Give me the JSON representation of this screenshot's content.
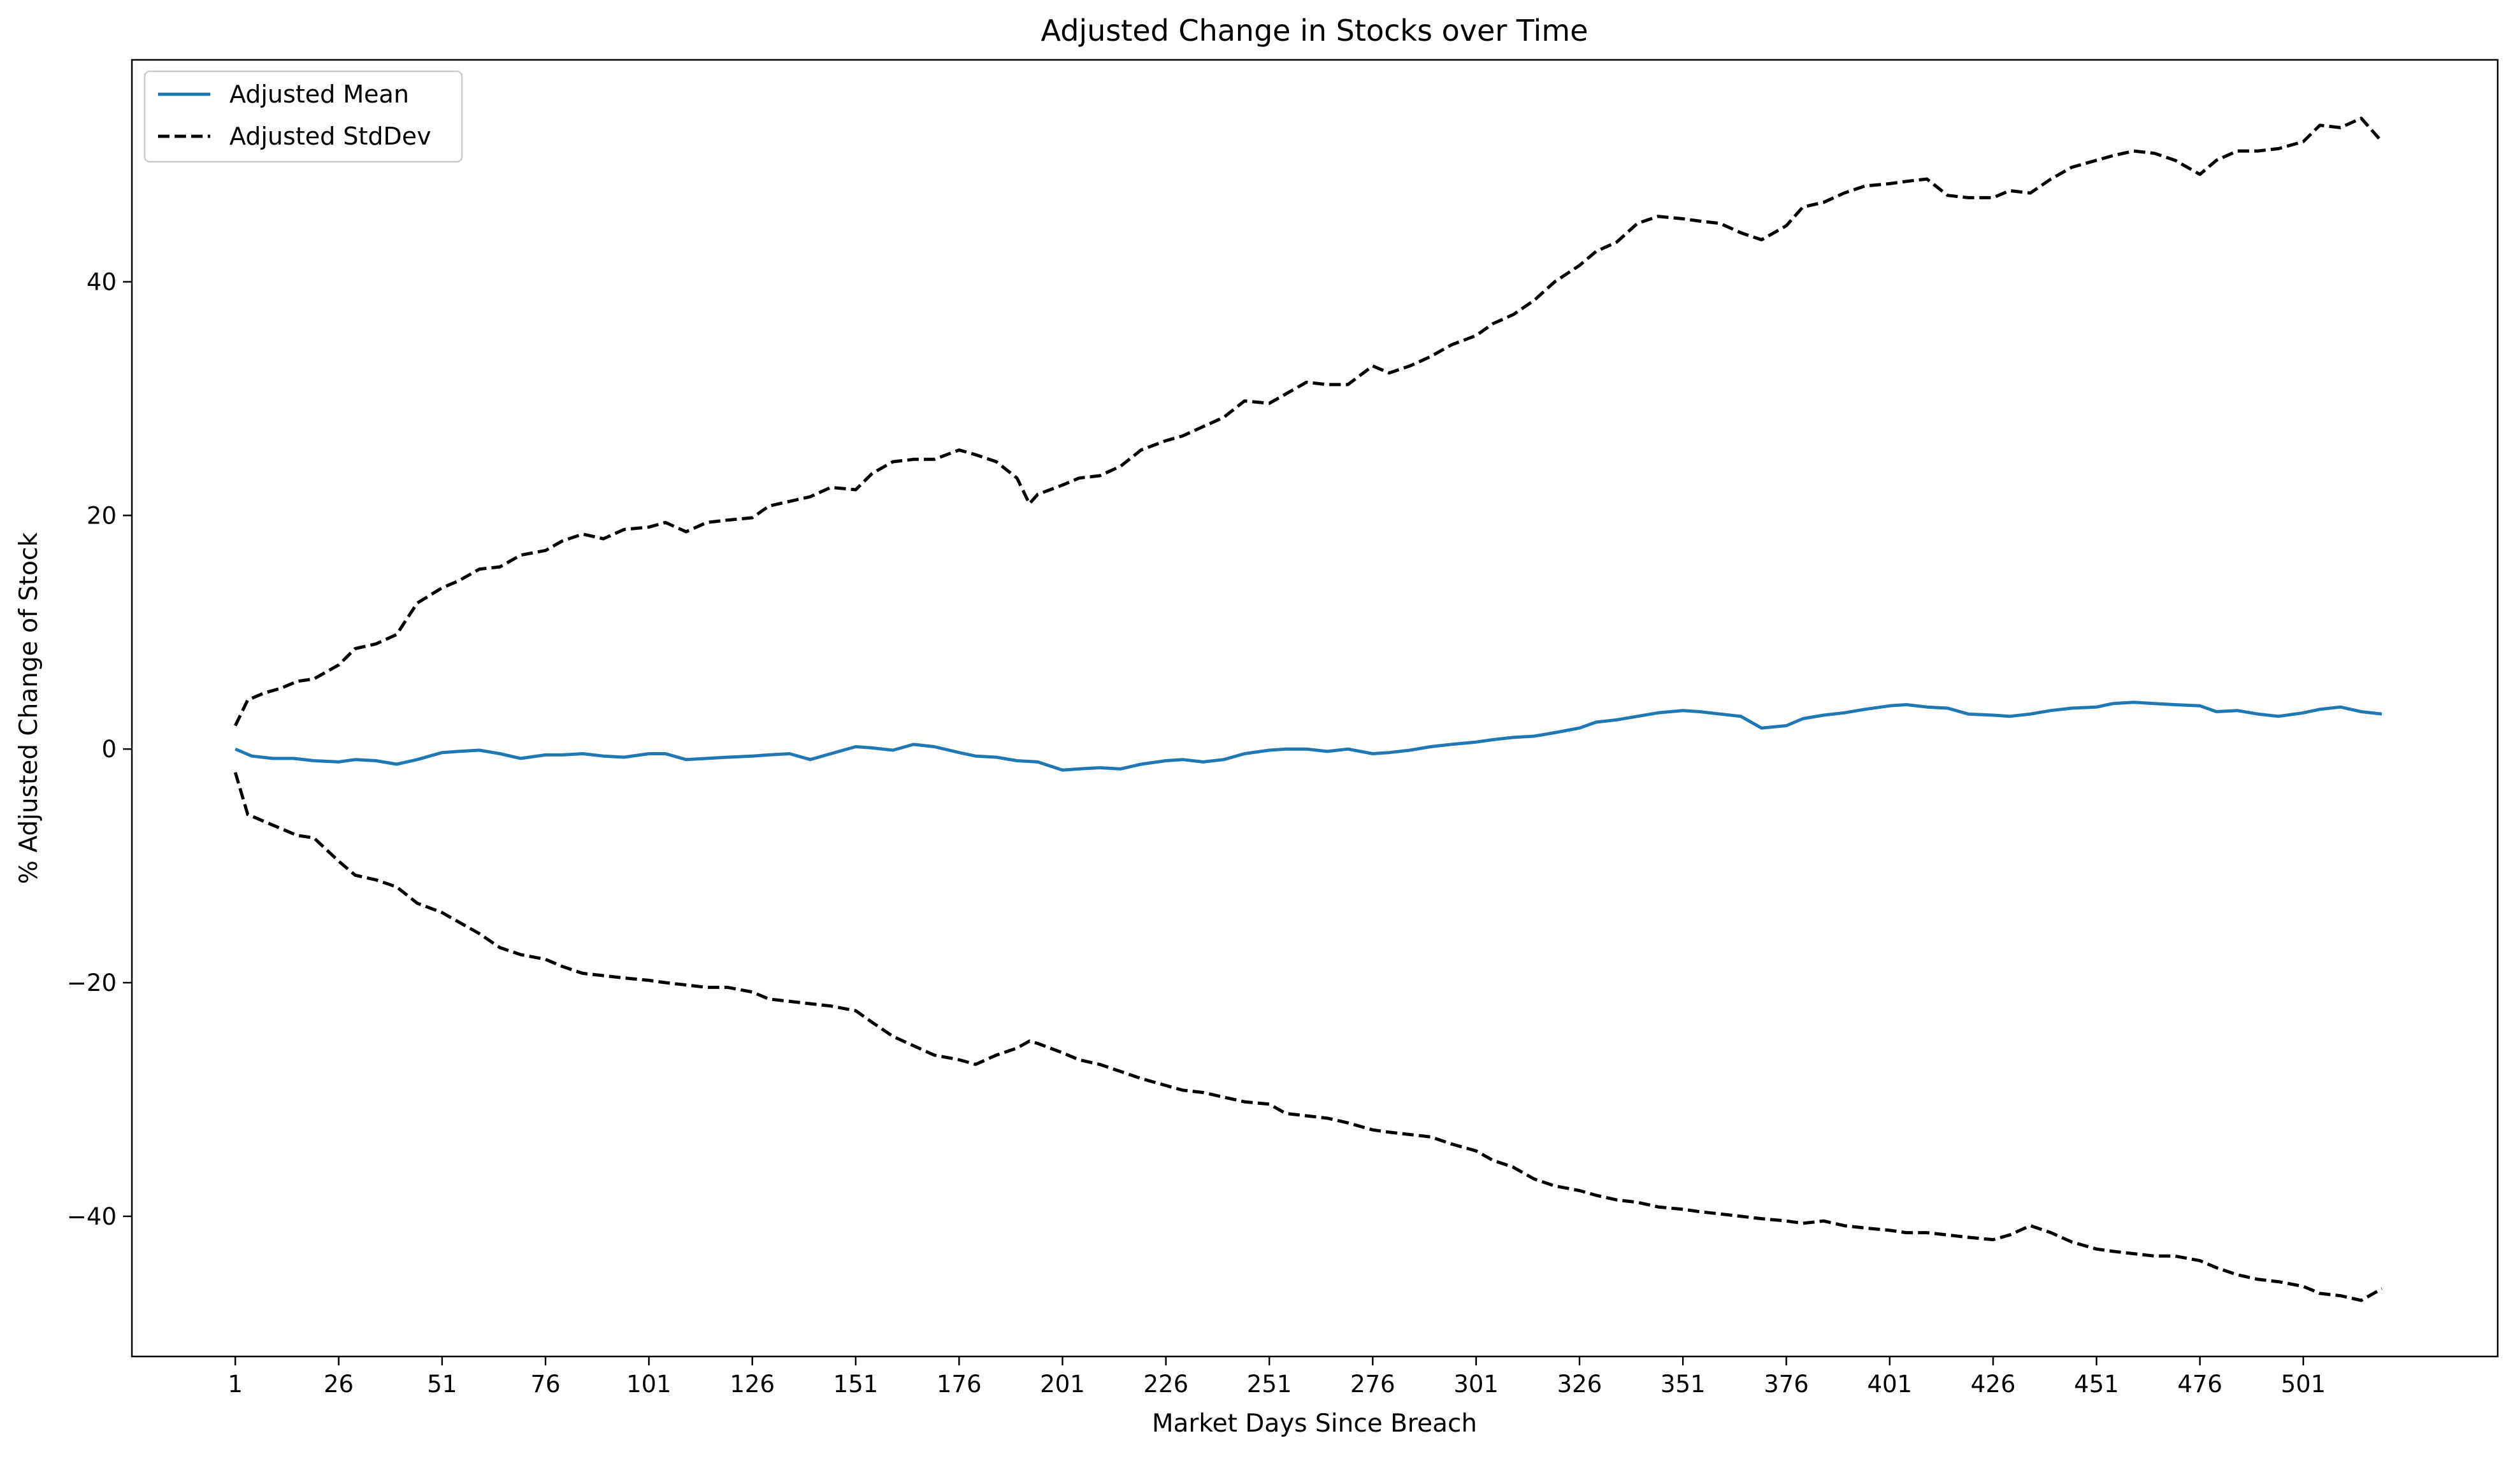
{
  "chart_data": {
    "type": "line",
    "title": "Adjusted Change in Stocks over Time",
    "xlabel": "Market Days Since Breach",
    "ylabel": "% Adjusted Change of Stock",
    "xlim": [
      -24,
      548
    ],
    "ylim": [
      -52,
      59
    ],
    "x_ticks": [
      1,
      26,
      51,
      76,
      101,
      126,
      151,
      176,
      201,
      226,
      251,
      276,
      301,
      326,
      351,
      376,
      401,
      426,
      451,
      476,
      501
    ],
    "y_ticks": [
      -40,
      -20,
      0,
      20,
      40
    ],
    "grid": false,
    "legend_position": "upper-left",
    "series": [
      {
        "name": "Adjusted Mean",
        "color": "#1f77b4",
        "style": "solid",
        "x": [
          1,
          5,
          10,
          15,
          20,
          26,
          30,
          35,
          40,
          45,
          51,
          55,
          60,
          65,
          70,
          76,
          80,
          85,
          90,
          95,
          101,
          105,
          110,
          115,
          120,
          126,
          130,
          135,
          140,
          145,
          151,
          155,
          160,
          165,
          170,
          176,
          180,
          185,
          190,
          195,
          201,
          205,
          210,
          215,
          220,
          226,
          230,
          235,
          240,
          245,
          251,
          255,
          260,
          265,
          270,
          276,
          280,
          285,
          290,
          295,
          301,
          305,
          310,
          315,
          320,
          326,
          330,
          335,
          340,
          345,
          351,
          355,
          360,
          365,
          370,
          376,
          380,
          385,
          390,
          395,
          401,
          405,
          410,
          415,
          420,
          426,
          430,
          435,
          440,
          445,
          451,
          455,
          460,
          465,
          470,
          476,
          480,
          485,
          490,
          495,
          501,
          505,
          510,
          515,
          520
        ],
        "y": [
          0,
          -0.6,
          -0.8,
          -0.8,
          -1.0,
          -1.1,
          -0.9,
          -1.0,
          -1.3,
          -0.9,
          -0.3,
          -0.2,
          -0.1,
          -0.4,
          -0.8,
          -0.5,
          -0.5,
          -0.4,
          -0.6,
          -0.7,
          -0.4,
          -0.4,
          -0.9,
          -0.8,
          -0.7,
          -0.6,
          -0.5,
          -0.4,
          -0.9,
          -0.4,
          0.2,
          0.1,
          -0.1,
          0.4,
          0.2,
          -0.3,
          -0.6,
          -0.7,
          -1.0,
          -1.1,
          -1.8,
          -1.7,
          -1.6,
          -1.7,
          -1.3,
          -1.0,
          -0.9,
          -1.1,
          -0.9,
          -0.4,
          -0.1,
          0.0,
          0.0,
          -0.2,
          0.0,
          -0.4,
          -0.3,
          -0.1,
          0.2,
          0.4,
          0.6,
          0.8,
          1.0,
          1.1,
          1.4,
          1.8,
          2.3,
          2.5,
          2.8,
          3.1,
          3.3,
          3.2,
          3.0,
          2.8,
          1.8,
          2.0,
          2.6,
          2.9,
          3.1,
          3.4,
          3.7,
          3.8,
          3.6,
          3.5,
          3.0,
          2.9,
          2.8,
          3.0,
          3.3,
          3.5,
          3.6,
          3.9,
          4.0,
          3.9,
          3.8,
          3.7,
          3.2,
          3.3,
          3.0,
          2.8,
          3.1,
          3.4,
          3.6,
          3.2,
          3.0
        ]
      },
      {
        "name": "Adjusted StdDev",
        "color": "#000000",
        "style": "dashed",
        "x": [
          1,
          4,
          8,
          12,
          16,
          20,
          26,
          30,
          35,
          40,
          45,
          51,
          55,
          60,
          65,
          70,
          76,
          80,
          85,
          90,
          95,
          101,
          105,
          110,
          115,
          120,
          126,
          130,
          135,
          140,
          145,
          151,
          155,
          160,
          165,
          170,
          176,
          180,
          185,
          190,
          193,
          195,
          201,
          205,
          210,
          215,
          220,
          226,
          230,
          235,
          240,
          245,
          251,
          255,
          260,
          265,
          270,
          276,
          280,
          285,
          290,
          295,
          301,
          305,
          310,
          315,
          320,
          326,
          330,
          335,
          340,
          345,
          351,
          355,
          360,
          365,
          370,
          376,
          380,
          385,
          390,
          395,
          401,
          405,
          410,
          415,
          420,
          426,
          430,
          435,
          440,
          445,
          451,
          455,
          460,
          465,
          470,
          476,
          480,
          485,
          490,
          495,
          501,
          505,
          510,
          515,
          520
        ],
        "y_upper": [
          2.0,
          4.2,
          4.8,
          5.2,
          5.8,
          6.0,
          7.2,
          8.6,
          9.0,
          9.8,
          12.5,
          13.8,
          14.4,
          15.4,
          15.6,
          16.6,
          17.0,
          17.8,
          18.4,
          18.0,
          18.8,
          19.0,
          19.4,
          18.6,
          19.4,
          19.6,
          19.8,
          20.8,
          21.2,
          21.6,
          22.4,
          22.2,
          23.6,
          24.6,
          24.8,
          24.8,
          25.6,
          25.2,
          24.6,
          23.2,
          21.0,
          21.8,
          22.6,
          23.2,
          23.4,
          24.2,
          25.6,
          26.4,
          26.8,
          27.6,
          28.4,
          29.8,
          29.6,
          30.4,
          31.4,
          31.2,
          31.2,
          32.8,
          32.2,
          32.8,
          33.6,
          34.6,
          35.4,
          36.4,
          37.2,
          38.4,
          40.0,
          41.4,
          42.6,
          43.4,
          45.0,
          45.6,
          45.4,
          45.2,
          45.0,
          44.2,
          43.6,
          44.8,
          46.4,
          46.8,
          47.6,
          48.2,
          48.4,
          48.6,
          48.8,
          47.4,
          47.2,
          47.2,
          47.8,
          47.6,
          48.8,
          49.8,
          50.4,
          50.8,
          51.2,
          51.0,
          50.4,
          49.2,
          50.4,
          51.2,
          51.2,
          51.4,
          52.0,
          53.4,
          53.2,
          54.0,
          52.0
        ],
        "y_lower": [
          -2.0,
          -5.6,
          -6.2,
          -6.8,
          -7.4,
          -7.6,
          -9.6,
          -10.8,
          -11.2,
          -11.8,
          -13.2,
          -14.0,
          -14.8,
          -15.8,
          -17.0,
          -17.6,
          -18.0,
          -18.6,
          -19.2,
          -19.4,
          -19.6,
          -19.8,
          -20.0,
          -20.2,
          -20.4,
          -20.4,
          -20.8,
          -21.4,
          -21.6,
          -21.8,
          -22.0,
          -22.4,
          -23.4,
          -24.6,
          -25.4,
          -26.2,
          -26.6,
          -27.0,
          -26.2,
          -25.6,
          -25.0,
          -25.2,
          -26.0,
          -26.6,
          -27.0,
          -27.6,
          -28.2,
          -28.8,
          -29.2,
          -29.4,
          -29.8,
          -30.2,
          -30.4,
          -31.2,
          -31.4,
          -31.6,
          -32.0,
          -32.6,
          -32.8,
          -33.0,
          -33.2,
          -33.8,
          -34.4,
          -35.2,
          -35.8,
          -36.8,
          -37.4,
          -37.8,
          -38.2,
          -38.6,
          -38.8,
          -39.2,
          -39.4,
          -39.6,
          -39.8,
          -40.0,
          -40.2,
          -40.4,
          -40.6,
          -40.4,
          -40.8,
          -41.0,
          -41.2,
          -41.4,
          -41.4,
          -41.6,
          -41.8,
          -42.0,
          -41.6,
          -40.8,
          -41.4,
          -42.2,
          -42.8,
          -43.0,
          -43.2,
          -43.4,
          -43.4,
          -43.8,
          -44.4,
          -45.0,
          -45.4,
          -45.6,
          -46.0,
          -46.6,
          -46.8,
          -47.2,
          -46.2
        ]
      }
    ]
  }
}
